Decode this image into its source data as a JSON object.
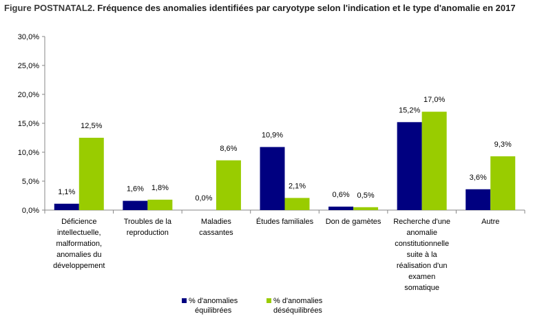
{
  "title": {
    "prefix": "Figure POSTNATAL2.",
    "text": " Fréquence des anomalies identifiées par caryotype selon l'indication et le type d'anomalie en 2017"
  },
  "chart_data": {
    "type": "bar",
    "categories": [
      [
        "Déficience",
        "intellectuelle,",
        "malformation,",
        "anomalies du",
        "développement"
      ],
      [
        "Troubles de la",
        "reproduction"
      ],
      [
        "Maladies",
        "cassantes"
      ],
      [
        "Études familiales"
      ],
      [
        "Don de gamètes"
      ],
      [
        "Recherche d'une",
        "anomalie",
        "constitutionnelle",
        "suite à la",
        "réalisation d'un",
        "examen",
        "somatique"
      ],
      [
        "Autre"
      ]
    ],
    "series": [
      {
        "name": "% d'anomalies équilibrées",
        "legend_lines": [
          "% d'anomalies",
          "équilibrées"
        ],
        "color": "#000080",
        "values": [
          1.1,
          1.6,
          0.0,
          10.9,
          0.6,
          15.2,
          3.6
        ],
        "labels": [
          "1,1%",
          "1,6%",
          "0,0%",
          "10,9%",
          "0,6%",
          "15,2%",
          "3,6%"
        ]
      },
      {
        "name": "% d'anomalies déséquilibrées",
        "legend_lines": [
          "% d'anomalies",
          "déséquilibrées"
        ],
        "color": "#99cc00",
        "values": [
          12.5,
          1.8,
          8.6,
          2.1,
          0.5,
          17.0,
          9.3
        ],
        "labels": [
          "12,5%",
          "1,8%",
          "8,6%",
          "2,1%",
          "0,5%",
          "17,0%",
          "9,3%"
        ]
      }
    ],
    "ylim": [
      0,
      30
    ],
    "yticks": [
      0,
      5,
      10,
      15,
      20,
      25,
      30
    ],
    "ytick_labels": [
      "0,0%",
      "5,0%",
      "10,0%",
      "15,0%",
      "20,0%",
      "25,0%",
      "30,0%"
    ],
    "grid": false,
    "legend_position": "bottom"
  }
}
